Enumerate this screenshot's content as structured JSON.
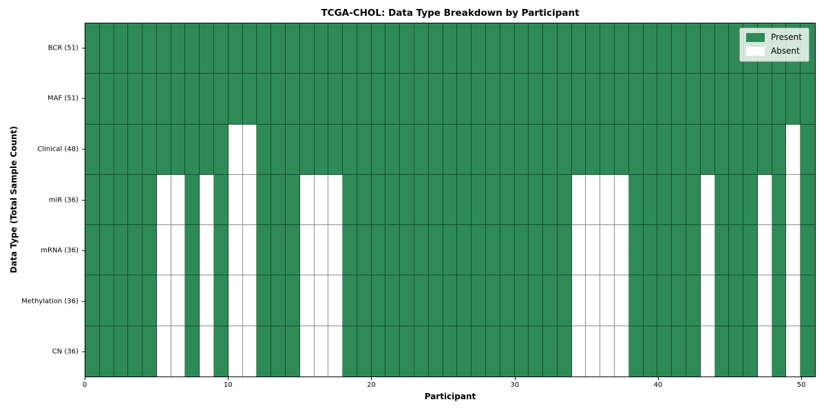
{
  "chart_data": {
    "type": "heatmap",
    "title": "TCGA-CHOL: Data Type Breakdown by Participant",
    "xlabel": "Participant",
    "ylabel": "Data Type (Total Sample Count)",
    "n_participants": 51,
    "x_ticks": [
      0,
      10,
      20,
      30,
      40,
      50
    ],
    "xlim": [
      0,
      51
    ],
    "grid": true,
    "legend_position": "upper right",
    "colors": {
      "present": "#2e8b57",
      "absent": "#ffffff",
      "gridline": "rgba(0,0,0,0.45)"
    },
    "legend_entries": [
      {
        "label": "Present",
        "color": "#2e8b57"
      },
      {
        "label": "Absent",
        "color": "#ffffff"
      }
    ],
    "rows": [
      {
        "label": "BCR (51)",
        "data_type": "BCR",
        "present_total": 51,
        "absent_participants": []
      },
      {
        "label": "MAF (51)",
        "data_type": "MAF",
        "present_total": 51,
        "absent_participants": []
      },
      {
        "label": "Clinical (48)",
        "data_type": "Clinical",
        "present_total": 48,
        "absent_participants": [
          10,
          11,
          49
        ]
      },
      {
        "label": "miR (36)",
        "data_type": "miR",
        "present_total": 36,
        "absent_participants": [
          5,
          6,
          8,
          10,
          11,
          15,
          16,
          17,
          34,
          35,
          36,
          37,
          43,
          47,
          49
        ]
      },
      {
        "label": "mRNA (36)",
        "data_type": "mRNA",
        "present_total": 36,
        "absent_participants": [
          5,
          6,
          8,
          10,
          11,
          15,
          16,
          17,
          34,
          35,
          36,
          37,
          43,
          47,
          49
        ]
      },
      {
        "label": "Methylation (36)",
        "data_type": "Methylation",
        "present_total": 36,
        "absent_participants": [
          5,
          6,
          8,
          10,
          11,
          15,
          16,
          17,
          34,
          35,
          36,
          37,
          43,
          47,
          49
        ]
      },
      {
        "label": "CN (36)",
        "data_type": "CN",
        "present_total": 36,
        "absent_participants": [
          5,
          6,
          8,
          10,
          11,
          15,
          16,
          17,
          34,
          35,
          36,
          37,
          43,
          47,
          49
        ]
      }
    ]
  }
}
